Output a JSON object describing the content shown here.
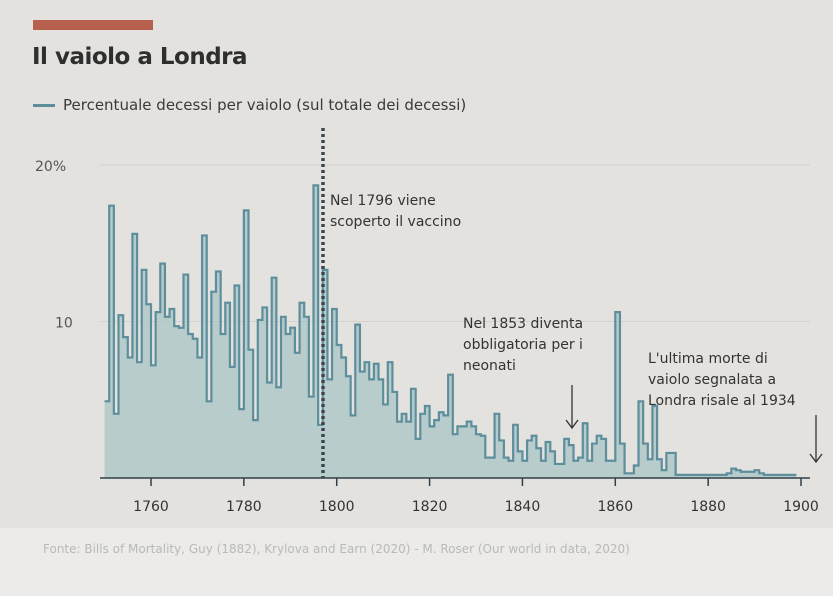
{
  "header": {
    "title": "Il vaiolo a Londra",
    "legend_label": "Percentuale decessi per vaiolo (sul totale dei decessi)"
  },
  "annotations": {
    "vaccine": [
      "Nel 1796 viene",
      "scoperto il vaccino"
    ],
    "mandatory": [
      "Nel 1853 diventa",
      "obbligatoria per i",
      "neonati"
    ],
    "last_death": [
      "L'ultima morte di",
      "vaiolo segnalata a",
      "Londra risale al 1934"
    ]
  },
  "footer": "Fonte: Bills of Mortality, Guy (1882), Krylova and Earn (2020) - M. Roser (Our world in data, 2020)",
  "colors": {
    "accent": "#b7604e",
    "line": "#5d8e9c",
    "fill": "#a9c4c6",
    "text": "#333333"
  },
  "chart_data": {
    "type": "area",
    "title": "Il vaiolo a Londra",
    "xlabel": "",
    "ylabel": "Percentuale decessi per vaiolo (sul totale dei decessi)",
    "xlim": [
      1750,
      1903
    ],
    "ylim": [
      0,
      20
    ],
    "x_ticks": [
      "1760",
      "1780",
      "1800",
      "1820",
      "1840",
      "1860",
      "1880",
      "1900"
    ],
    "x_tick_values": [
      1760,
      1780,
      1800,
      1820,
      1840,
      1860,
      1880,
      1900
    ],
    "y_ticks": [
      "10",
      "20%"
    ],
    "y_tick_values": [
      10,
      20
    ],
    "grid": true,
    "series": [
      {
        "name": "Percentuale decessi per vaiolo (sul totale dei decessi)",
        "start_year": 1750,
        "values": [
          4.9,
          17.4,
          4.1,
          10.4,
          9.0,
          7.7,
          15.6,
          7.4,
          13.3,
          11.1,
          7.2,
          10.6,
          13.7,
          10.3,
          10.8,
          9.7,
          9.6,
          13.0,
          9.2,
          8.9,
          7.7,
          15.5,
          4.9,
          11.9,
          13.2,
          9.2,
          11.2,
          7.1,
          12.3,
          4.4,
          17.1,
          8.2,
          3.7,
          10.1,
          10.9,
          6.1,
          12.8,
          5.8,
          10.3,
          9.2,
          9.6,
          8.0,
          11.2,
          10.3,
          5.2,
          18.7,
          3.4,
          13.3,
          6.3,
          10.8,
          8.5,
          7.7,
          6.5,
          4.0,
          9.8,
          6.8,
          7.4,
          6.3,
          7.3,
          6.3,
          4.7,
          7.4,
          5.5,
          3.6,
          4.1,
          3.6,
          5.7,
          2.5,
          4.1,
          4.6,
          3.3,
          3.7,
          4.2,
          4.0,
          6.6,
          2.8,
          3.3,
          3.3,
          3.6,
          3.3,
          2.8,
          2.7,
          1.3,
          1.3,
          4.1,
          2.4,
          1.3,
          1.1,
          3.4,
          1.7,
          1.1,
          2.4,
          2.7,
          1.9,
          1.1,
          2.3,
          1.7,
          0.9,
          0.9,
          2.5,
          2.1,
          1.1,
          1.3,
          3.5,
          1.1,
          2.2,
          2.7,
          2.5,
          1.1,
          1.1,
          10.6,
          2.2,
          0.3,
          0.3,
          0.8,
          4.9,
          2.2,
          1.2,
          4.6,
          1.2,
          0.5,
          1.6,
          1.6,
          0.2,
          0.2,
          0.2,
          0.2,
          0.2,
          0.2,
          0.2,
          0.2,
          0.2,
          0.2,
          0.2,
          0.3,
          0.6,
          0.5,
          0.4,
          0.4,
          0.4,
          0.5,
          0.3,
          0.2,
          0.2,
          0.2,
          0.2,
          0.2,
          0.2,
          0.2
        ]
      }
    ],
    "events": [
      {
        "year": 1796,
        "label": "Nel 1796 viene scoperto il vaccino",
        "style": "dotted-line"
      },
      {
        "year": 1853,
        "label": "Nel 1853 diventa obbligatoria per i neonati",
        "style": "arrow"
      },
      {
        "year": 1903,
        "label": "L'ultima morte di vaiolo segnalata a Londra risale al 1934",
        "style": "arrow"
      }
    ]
  }
}
